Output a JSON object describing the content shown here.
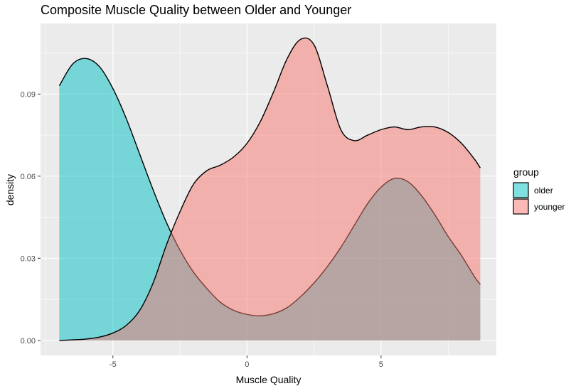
{
  "chart_data": {
    "type": "area",
    "title": "Composite Muscle Quality between Older and Younger",
    "xlabel": "Muscle Quality",
    "ylabel": "density",
    "xlim": [
      -7.7,
      9.3
    ],
    "ylim": [
      -0.0055,
      0.1158
    ],
    "x_ticks": [
      -5,
      0,
      5
    ],
    "x_tick_labels": [
      "-5",
      "0",
      "5"
    ],
    "y_ticks": [
      0.0,
      0.03,
      0.06,
      0.09
    ],
    "y_tick_labels": [
      "0.00",
      "0.03",
      "0.06",
      "0.09"
    ],
    "grid": true,
    "legend": {
      "title": "group",
      "position": "right",
      "entries": [
        {
          "label": "older",
          "color": "#00BFC4"
        },
        {
          "label": "younger",
          "color": "#F8766D"
        }
      ]
    },
    "series": [
      {
        "name": "older",
        "color": "#00BFC4",
        "x": [
          -7.0,
          -6.5,
          -6.0,
          -5.5,
          -5.0,
          -4.5,
          -4.0,
          -3.5,
          -3.0,
          -2.5,
          -2.0,
          -1.5,
          -1.0,
          -0.5,
          0.0,
          0.5,
          1.0,
          1.5,
          2.0,
          2.5,
          3.0,
          3.5,
          4.0,
          4.5,
          5.0,
          5.5,
          6.0,
          6.5,
          7.0,
          7.5,
          8.0,
          8.5,
          8.7
        ],
        "y": [
          0.093,
          0.101,
          0.103,
          0.1,
          0.092,
          0.081,
          0.068,
          0.055,
          0.043,
          0.033,
          0.025,
          0.019,
          0.014,
          0.011,
          0.0095,
          0.009,
          0.0098,
          0.012,
          0.016,
          0.021,
          0.027,
          0.034,
          0.042,
          0.05,
          0.056,
          0.0592,
          0.058,
          0.053,
          0.046,
          0.038,
          0.031,
          0.023,
          0.0205
        ]
      },
      {
        "name": "younger",
        "color": "#F8766D",
        "x": [
          -7.0,
          -6.5,
          -6.0,
          -5.5,
          -5.0,
          -4.5,
          -4.0,
          -3.5,
          -3.0,
          -2.5,
          -2.0,
          -1.5,
          -1.0,
          -0.5,
          0.0,
          0.5,
          1.0,
          1.5,
          2.0,
          2.5,
          3.0,
          3.5,
          4.0,
          4.5,
          5.0,
          5.5,
          6.0,
          6.5,
          7.0,
          7.5,
          8.0,
          8.5,
          8.7
        ],
        "y": [
          0.0,
          0.0002,
          0.0005,
          0.0012,
          0.0027,
          0.0055,
          0.011,
          0.021,
          0.035,
          0.047,
          0.057,
          0.062,
          0.064,
          0.067,
          0.072,
          0.08,
          0.091,
          0.103,
          0.11,
          0.108,
          0.093,
          0.077,
          0.073,
          0.075,
          0.077,
          0.078,
          0.077,
          0.078,
          0.078,
          0.076,
          0.072,
          0.066,
          0.063
        ]
      }
    ]
  }
}
